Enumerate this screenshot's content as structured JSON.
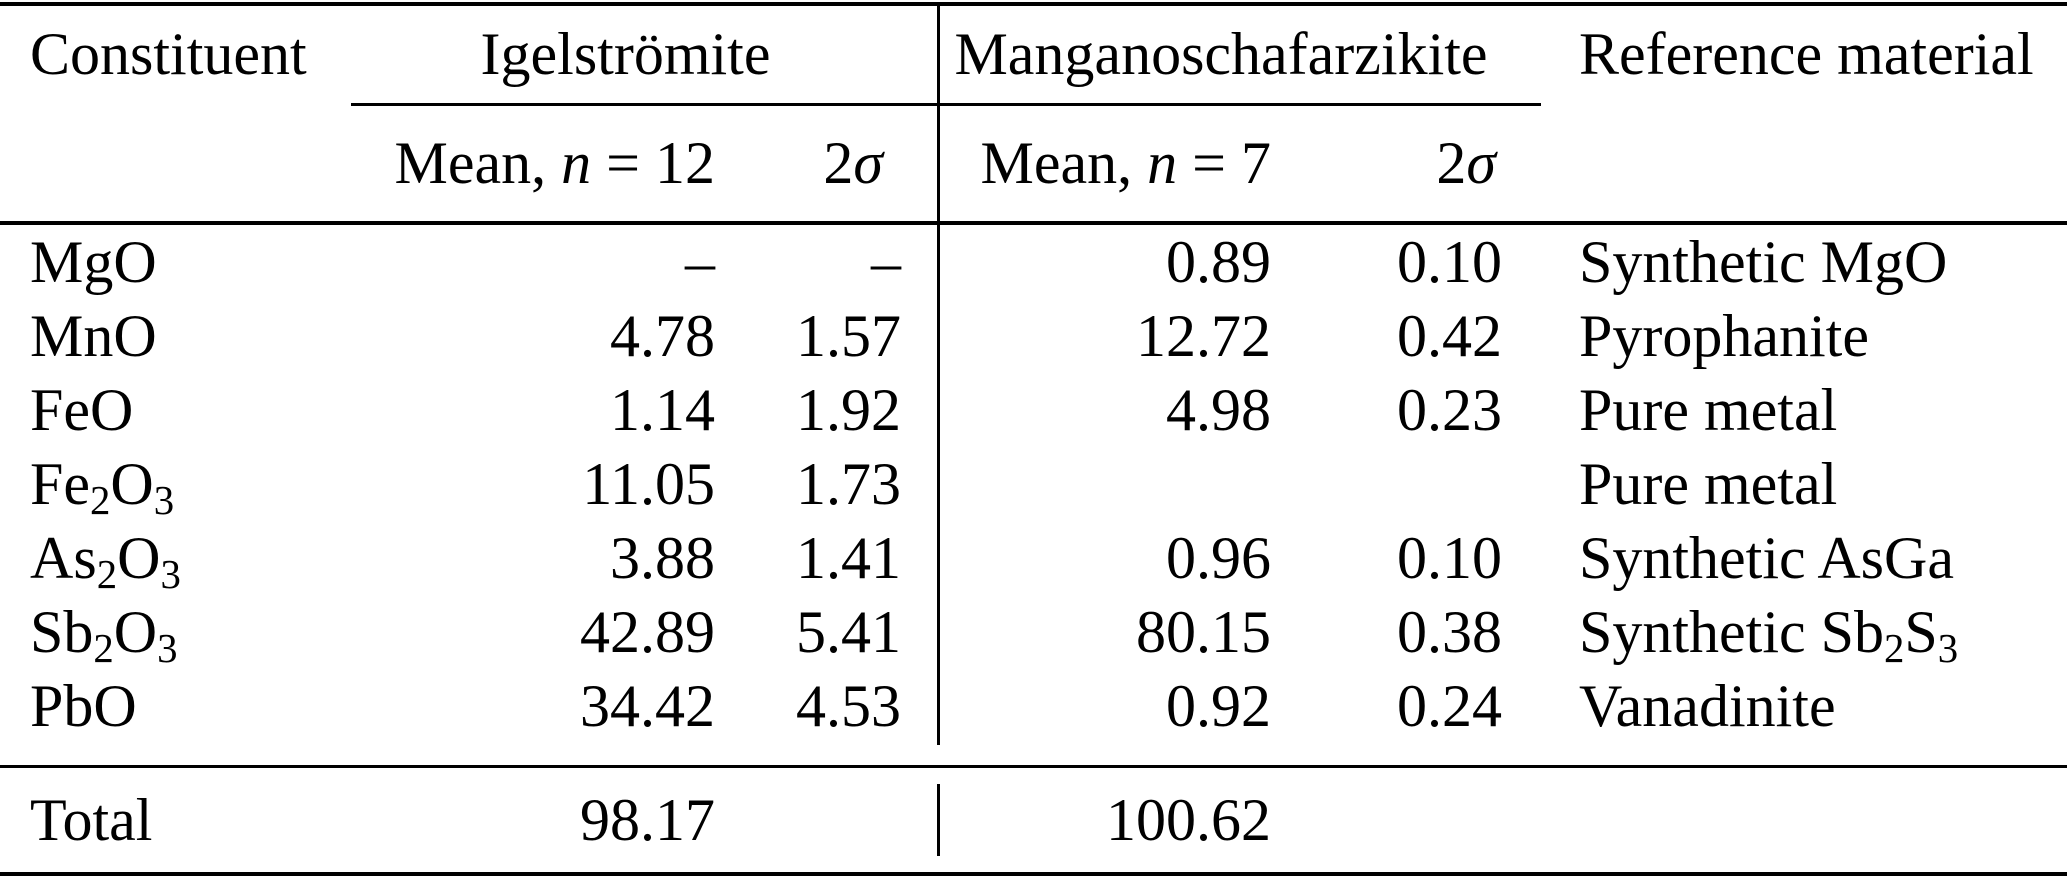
{
  "page": {
    "background_color": "#ffffff",
    "text_color": "#000000"
  },
  "table": {
    "header": {
      "constituent": "Constituent",
      "group1": "Igelströmite",
      "group2": "Manganoschafarzikite",
      "reference": "Reference material",
      "sub": {
        "mean1": [
          "Mean, ",
          {
            "i": "n"
          },
          " = 12"
        ],
        "sigma1": [
          "2",
          {
            "i": "σ"
          }
        ],
        "mean2": [
          "Mean, ",
          {
            "i": "n"
          },
          " = 7"
        ],
        "sigma2": [
          "2",
          {
            "i": "σ"
          }
        ]
      }
    },
    "rows": [
      {
        "constituent": [
          "MgO"
        ],
        "ig_mean": "–",
        "ig_sigma": "–",
        "mn_mean": "0.89",
        "mn_sigma": "0.10",
        "reference": [
          "Synthetic MgO"
        ]
      },
      {
        "constituent": [
          "MnO"
        ],
        "ig_mean": "4.78",
        "ig_sigma": "1.57",
        "mn_mean": "12.72",
        "mn_sigma": "0.42",
        "reference": [
          "Pyrophanite"
        ]
      },
      {
        "constituent": [
          "FeO"
        ],
        "ig_mean": "1.14",
        "ig_sigma": "1.92",
        "mn_mean": "4.98",
        "mn_sigma": "0.23",
        "reference": [
          "Pure metal"
        ]
      },
      {
        "constituent": [
          "Fe",
          {
            "sub": "2"
          },
          "O",
          {
            "sub": "3"
          }
        ],
        "ig_mean": "11.05",
        "ig_sigma": "1.73",
        "mn_mean": "",
        "mn_sigma": "",
        "reference": [
          "Pure metal"
        ]
      },
      {
        "constituent": [
          "As",
          {
            "sub": "2"
          },
          "O",
          {
            "sub": "3"
          }
        ],
        "ig_mean": "3.88",
        "ig_sigma": "1.41",
        "mn_mean": "0.96",
        "mn_sigma": "0.10",
        "reference": [
          "Synthetic AsGa"
        ]
      },
      {
        "constituent": [
          "Sb",
          {
            "sub": "2"
          },
          "O",
          {
            "sub": "3"
          }
        ],
        "ig_mean": "42.89",
        "ig_sigma": "5.41",
        "mn_mean": "80.15",
        "mn_sigma": "0.38",
        "reference": [
          "Synthetic Sb",
          {
            "sub": "2"
          },
          "S",
          {
            "sub": "3"
          }
        ]
      },
      {
        "constituent": [
          "PbO"
        ],
        "ig_mean": "34.42",
        "ig_sigma": "4.53",
        "mn_mean": "0.92",
        "mn_sigma": "0.24",
        "reference": [
          "Vanadinite"
        ]
      }
    ],
    "total": {
      "label": "Total",
      "ig_mean": "98.17",
      "mn_mean": "100.62"
    }
  }
}
